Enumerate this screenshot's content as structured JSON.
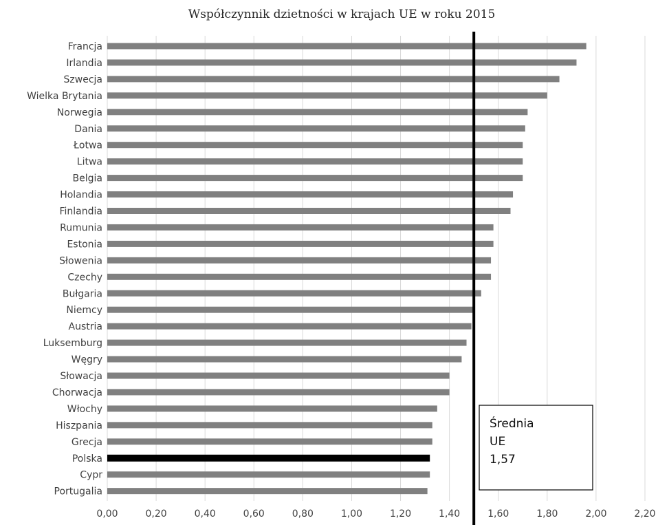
{
  "chart_data": {
    "type": "bar",
    "orientation": "horizontal",
    "title": "Współczynnik dzietności w krajach UE w roku 2015",
    "xlabel": "",
    "ylabel": "",
    "xlim": [
      0,
      2.2
    ],
    "x_ticks": [
      "0,00",
      "0,20",
      "0,40",
      "0,60",
      "0,80",
      "1,00",
      "1,20",
      "1,40",
      "1,60",
      "1,80",
      "2,00",
      "2,20"
    ],
    "grid": true,
    "legend": false,
    "categories": [
      "Francja",
      "Irlandia",
      "Szwecja",
      "Wielka Brytania",
      "Norwegia",
      "Dania",
      "Łotwa",
      "Litwa",
      "Belgia",
      "Holandia",
      "Finlandia",
      "Rumunia",
      "Estonia",
      "Słowenia",
      "Czechy",
      "Bułgaria",
      "Niemcy",
      "Austria",
      "Luksemburg",
      "Węgry",
      "Słowacja",
      "Chorwacja",
      "Włochy",
      "Hiszpania",
      "Grecja",
      "Polska",
      "Cypr",
      "Portugalia"
    ],
    "values": [
      1.96,
      1.92,
      1.85,
      1.8,
      1.72,
      1.71,
      1.7,
      1.7,
      1.7,
      1.66,
      1.65,
      1.58,
      1.58,
      1.57,
      1.57,
      1.53,
      1.5,
      1.49,
      1.47,
      1.45,
      1.4,
      1.4,
      1.35,
      1.33,
      1.33,
      1.32,
      1.32,
      1.31
    ],
    "highlight_category": "Polska",
    "bar_color": "#808080",
    "highlight_color": "#000000",
    "reference_line": {
      "value": 1.5,
      "color": "#000000"
    },
    "annotation": {
      "lines": [
        "Średnia",
        "UE",
        "1,57"
      ]
    }
  }
}
